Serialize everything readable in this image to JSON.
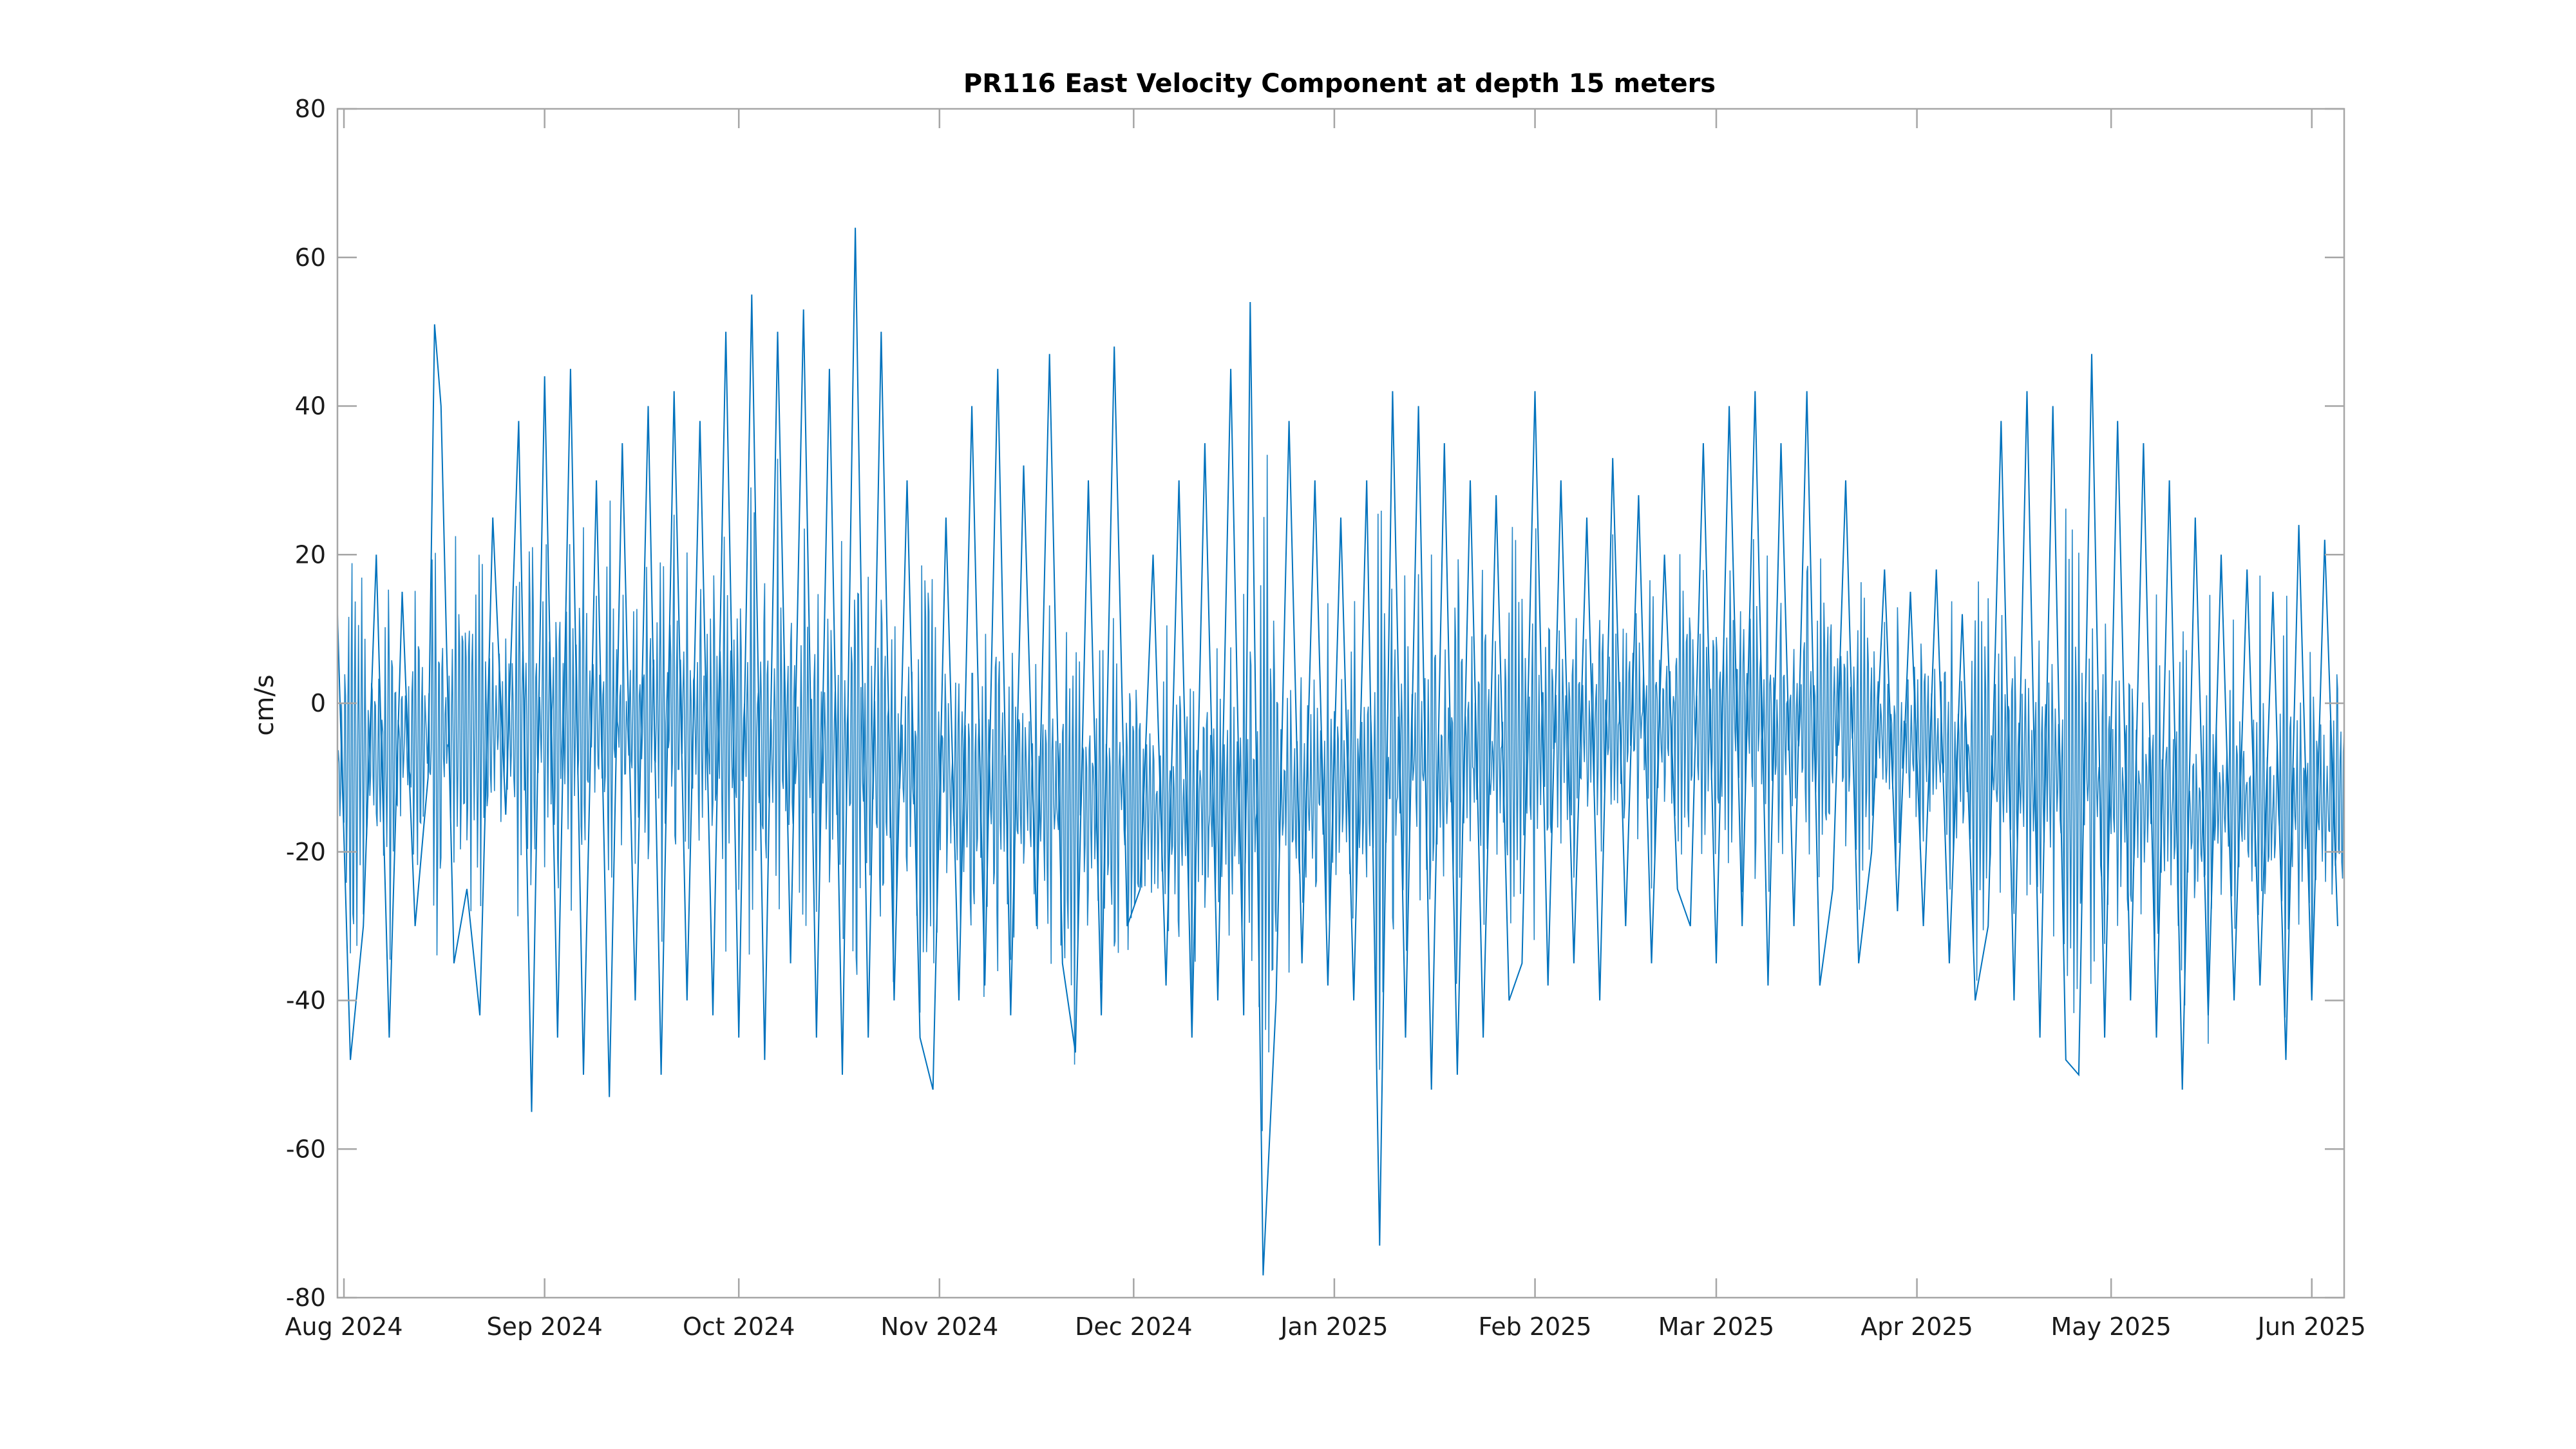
{
  "chart_data": {
    "type": "line",
    "title": "PR116 East Velocity Component at depth 15 meters",
    "xlabel": "",
    "ylabel": "cm/s",
    "ylim": [
      -80,
      80
    ],
    "xlim": [
      "2024-07-31",
      "2025-06-06"
    ],
    "yticks": [
      80,
      60,
      40,
      20,
      0,
      -20,
      -40,
      -60,
      -80
    ],
    "xticks": [
      {
        "date": "2024-08-01",
        "label": "Aug 2024"
      },
      {
        "date": "2024-09-01",
        "label": "Sep 2024"
      },
      {
        "date": "2024-10-01",
        "label": "Oct 2024"
      },
      {
        "date": "2024-11-01",
        "label": "Nov 2024"
      },
      {
        "date": "2024-12-01",
        "label": "Dec 2024"
      },
      {
        "date": "2025-01-01",
        "label": "Jan 2025"
      },
      {
        "date": "2025-02-01",
        "label": "Feb 2025"
      },
      {
        "date": "2025-03-01",
        "label": "Mar 2025"
      },
      {
        "date": "2025-04-01",
        "label": "Apr 2025"
      },
      {
        "date": "2025-05-01",
        "label": "May 2025"
      },
      {
        "date": "2025-06-01",
        "label": "Jun 2025"
      }
    ],
    "grid": false,
    "line_color": "#0072bd",
    "series": [
      {
        "x": [
          "2024-07-31",
          "2024-08-02",
          "2024-08-04",
          "2024-08-06",
          "2024-08-08",
          "2024-08-10",
          "2024-08-12",
          "2024-08-14",
          "2024-08-15",
          "2024-08-16",
          "2024-08-18",
          "2024-08-20",
          "2024-08-22",
          "2024-08-24",
          "2024-08-26",
          "2024-08-28",
          "2024-08-30",
          "2024-09-01",
          "2024-09-03",
          "2024-09-05",
          "2024-09-07",
          "2024-09-09",
          "2024-09-11",
          "2024-09-13",
          "2024-09-15",
          "2024-09-17",
          "2024-09-19",
          "2024-09-21",
          "2024-09-23",
          "2024-09-25",
          "2024-09-27",
          "2024-09-29",
          "2024-10-01",
          "2024-10-03",
          "2024-10-05",
          "2024-10-07",
          "2024-10-09",
          "2024-10-11",
          "2024-10-13",
          "2024-10-15",
          "2024-10-17",
          "2024-10-19",
          "2024-10-21",
          "2024-10-23",
          "2024-10-25",
          "2024-10-27",
          "2024-10-29",
          "2024-10-31",
          "2024-11-02",
          "2024-11-04",
          "2024-11-06",
          "2024-11-08",
          "2024-11-10",
          "2024-11-12",
          "2024-11-14",
          "2024-11-16",
          "2024-11-18",
          "2024-11-20",
          "2024-11-22",
          "2024-11-24",
          "2024-11-26",
          "2024-11-28",
          "2024-11-30",
          "2024-12-02",
          "2024-12-04",
          "2024-12-06",
          "2024-12-08",
          "2024-12-10",
          "2024-12-12",
          "2024-12-14",
          "2024-12-16",
          "2024-12-18",
          "2024-12-19",
          "2024-12-21",
          "2024-12-23",
          "2024-12-25",
          "2024-12-27",
          "2024-12-29",
          "2024-12-31",
          "2025-01-02",
          "2025-01-04",
          "2025-01-06",
          "2025-01-08",
          "2025-01-10",
          "2025-01-12",
          "2025-01-14",
          "2025-01-16",
          "2025-01-18",
          "2025-01-20",
          "2025-01-22",
          "2025-01-24",
          "2025-01-26",
          "2025-01-28",
          "2025-01-30",
          "2025-02-01",
          "2025-02-03",
          "2025-02-05",
          "2025-02-07",
          "2025-02-09",
          "2025-02-11",
          "2025-02-13",
          "2025-02-15",
          "2025-02-17",
          "2025-02-19",
          "2025-02-21",
          "2025-02-23",
          "2025-02-25",
          "2025-02-27",
          "2025-03-01",
          "2025-03-03",
          "2025-03-05",
          "2025-03-07",
          "2025-03-09",
          "2025-03-11",
          "2025-03-13",
          "2025-03-15",
          "2025-03-17",
          "2025-03-19",
          "2025-03-21",
          "2025-03-23",
          "2025-03-25",
          "2025-03-27",
          "2025-03-29",
          "2025-03-31",
          "2025-04-02",
          "2025-04-04",
          "2025-04-06",
          "2025-04-08",
          "2025-04-10",
          "2025-04-12",
          "2025-04-14",
          "2025-04-16",
          "2025-04-18",
          "2025-04-20",
          "2025-04-22",
          "2025-04-24",
          "2025-04-26",
          "2025-04-28",
          "2025-04-30",
          "2025-05-02",
          "2025-05-04",
          "2025-05-06",
          "2025-05-08",
          "2025-05-10",
          "2025-05-12",
          "2025-05-14",
          "2025-05-16",
          "2025-05-18",
          "2025-05-20",
          "2025-05-22",
          "2025-05-24",
          "2025-05-26",
          "2025-05-28",
          "2025-05-30",
          "2025-06-01",
          "2025-06-03",
          "2025-06-05"
        ],
        "y": [
          12,
          -48,
          -30,
          20,
          -45,
          15,
          -30,
          -10,
          51,
          40,
          -35,
          -25,
          -42,
          25,
          -15,
          38,
          -55,
          44,
          -45,
          45,
          -50,
          30,
          -53,
          35,
          -40,
          40,
          -50,
          42,
          -40,
          38,
          -42,
          50,
          -45,
          55,
          -48,
          50,
          -35,
          53,
          -45,
          45,
          -50,
          64,
          -45,
          50,
          -40,
          30,
          -45,
          -52,
          25,
          -40,
          40,
          -38,
          45,
          -42,
          32,
          -30,
          47,
          -35,
          -47,
          30,
          -42,
          48,
          -30,
          -25,
          20,
          -38,
          30,
          -45,
          35,
          -40,
          45,
          -42,
          54,
          -77,
          -40,
          38,
          -35,
          30,
          -38,
          25,
          -40,
          30,
          -73,
          42,
          -45,
          40,
          -52,
          35,
          -50,
          30,
          -45,
          28,
          -40,
          -35,
          42,
          -38,
          30,
          -35,
          25,
          -40,
          33,
          -30,
          28,
          -35,
          20,
          -25,
          -30,
          35,
          -35,
          40,
          -30,
          42,
          -38,
          35,
          -30,
          42,
          -38,
          -25,
          30,
          -35,
          -20,
          18,
          -28,
          15,
          -30,
          18,
          -35,
          12,
          -40,
          -30,
          38,
          -40,
          42,
          -45,
          40,
          -48,
          -50,
          47,
          -45,
          38,
          -40,
          35,
          -45,
          30,
          -52,
          25,
          -42,
          20,
          -40,
          18,
          -38,
          15,
          -48,
          24,
          -40,
          22,
          -30
        ]
      }
    ]
  }
}
